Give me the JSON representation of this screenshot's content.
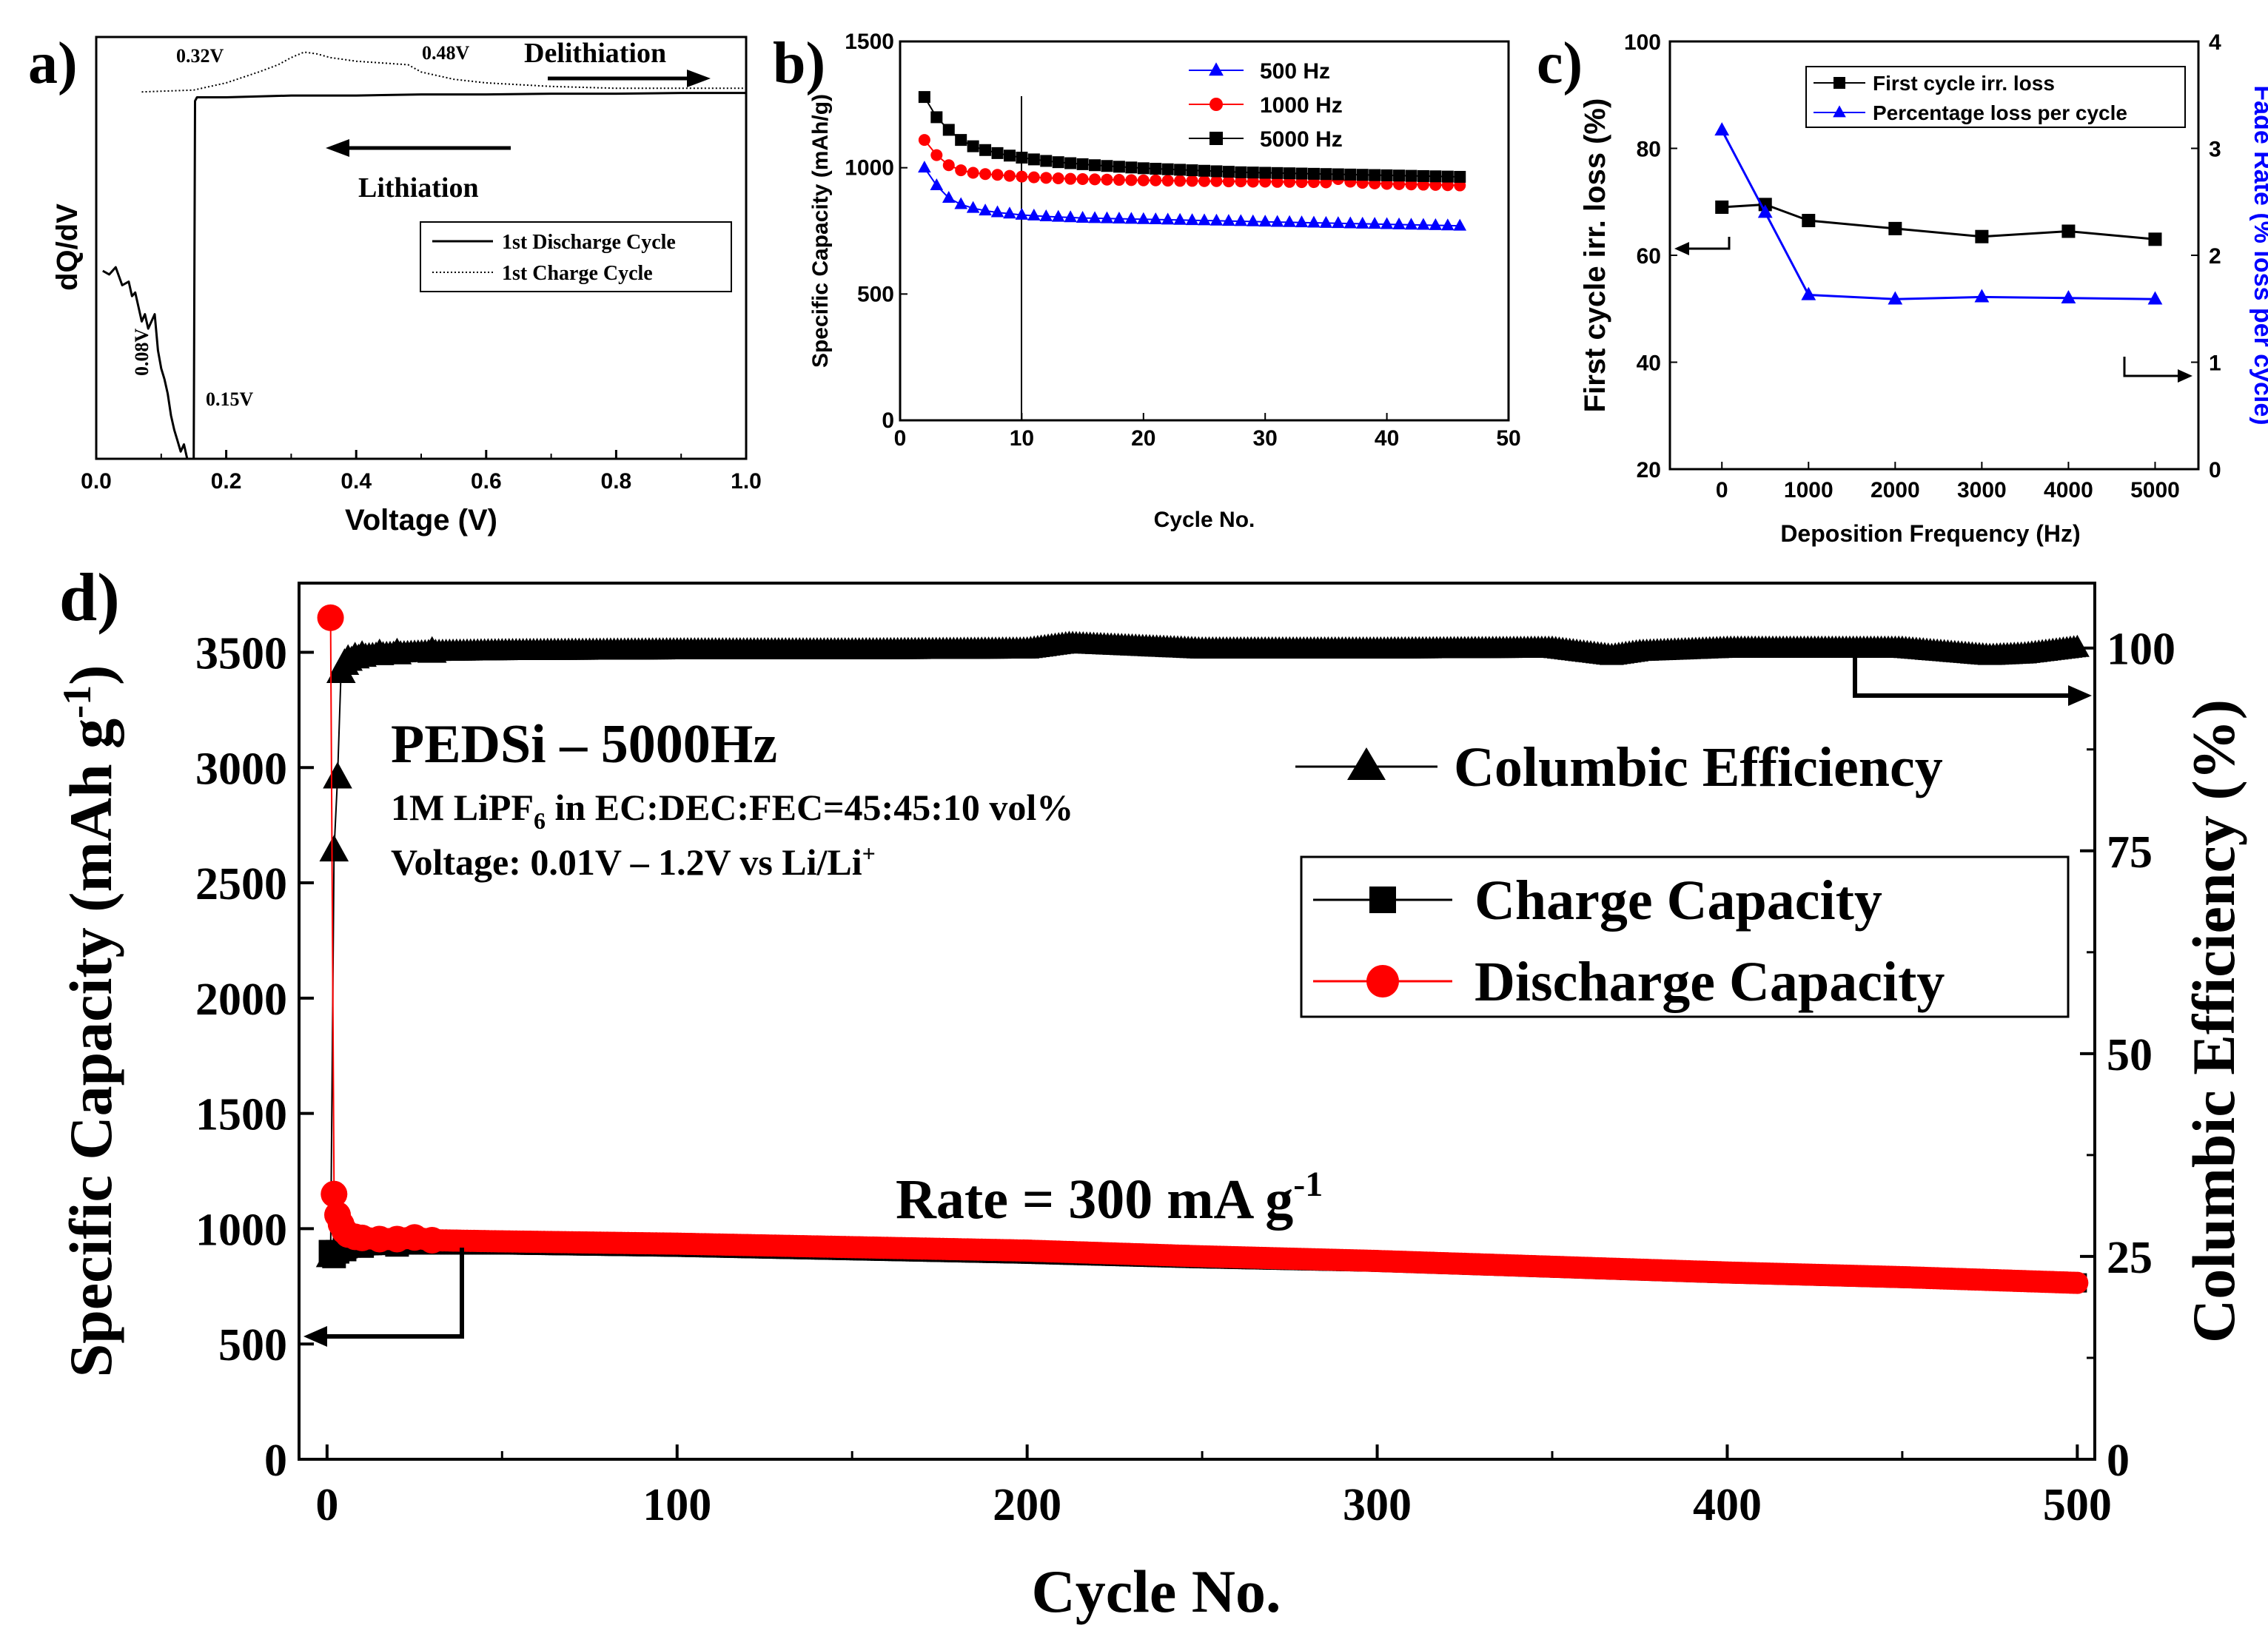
{
  "panel_labels": {
    "a": "a)",
    "b": "b)",
    "c": "c)",
    "d": "d)"
  },
  "chart_data": [
    {
      "panel": "a",
      "type": "line",
      "xlabel": "Voltage (V)",
      "ylabel": "dQ/dV",
      "xlim": [
        0.0,
        1.0
      ],
      "xticks": [
        "0.0",
        "0.2",
        "0.4",
        "0.6",
        "0.8",
        "1.0"
      ],
      "legend": [
        "1st Discharge Cycle",
        "1st Charge Cycle"
      ],
      "annotations": {
        "p032": "0.32V",
        "p048": "0.48V",
        "p008": "0.08V",
        "p015": "0.15V",
        "delithiation": "Delithiation",
        "lithiation": "Lithiation"
      },
      "series": [
        {
          "name": "1st Discharge Cycle",
          "style": "solid",
          "x": [
            0.01,
            0.02,
            0.03,
            0.04,
            0.05,
            0.055,
            0.06,
            0.065,
            0.07,
            0.075,
            0.08,
            0.085,
            0.09,
            0.095,
            0.1,
            0.105,
            0.11,
            0.115,
            0.12,
            0.125,
            0.13,
            0.135,
            0.14,
            0.15,
            0.152,
            0.155,
            0.2,
            0.3,
            0.4,
            0.5,
            0.6,
            0.7,
            0.8,
            0.9,
            1.0
          ],
          "y": [
            0.52,
            0.51,
            0.53,
            0.48,
            0.49,
            0.45,
            0.46,
            0.42,
            0.38,
            0.4,
            0.36,
            0.38,
            0.4,
            0.3,
            0.25,
            0.22,
            0.18,
            0.12,
            0.08,
            0.05,
            0.02,
            0.04,
            0.0,
            0.0,
            0.99,
            1.0,
            1.0,
            1.005,
            1.005,
            1.008,
            1.008,
            1.01,
            1.01,
            1.012,
            1.012
          ]
        },
        {
          "name": "1st Charge Cycle",
          "style": "dotted",
          "x": [
            0.07,
            0.15,
            0.2,
            0.25,
            0.28,
            0.3,
            0.32,
            0.34,
            0.36,
            0.4,
            0.44,
            0.48,
            0.5,
            0.55,
            0.6,
            0.7,
            0.8,
            0.9,
            1.0
          ],
          "y": [
            1.015,
            1.02,
            1.04,
            1.07,
            1.09,
            1.11,
            1.125,
            1.12,
            1.11,
            1.1,
            1.095,
            1.09,
            1.07,
            1.05,
            1.04,
            1.03,
            1.025,
            1.025,
            1.025
          ]
        }
      ]
    },
    {
      "panel": "b",
      "type": "line",
      "xlabel": "Cycle No.",
      "ylabel": "Specific Capacity (mAh/g)",
      "xlim": [
        0,
        50
      ],
      "ylim": [
        0,
        1500
      ],
      "xticks": [
        "0",
        "10",
        "20",
        "30",
        "40",
        "50"
      ],
      "yticks": [
        "0",
        "500",
        "1000",
        "1500"
      ],
      "vline_x": 10,
      "legend": [
        "500 Hz",
        "1000 Hz",
        "5000 Hz"
      ],
      "series": [
        {
          "name": "500 Hz",
          "color": "#0000ff",
          "marker": "triangle",
          "values": [
            1000,
            930,
            880,
            855,
            840,
            830,
            823,
            818,
            813,
            810,
            807,
            805,
            803,
            801,
            800,
            799,
            798,
            797,
            796,
            795,
            794,
            793,
            792,
            791,
            790,
            789,
            788,
            787,
            786,
            785,
            784,
            783,
            782,
            781,
            780,
            779,
            778,
            777,
            776,
            775,
            774,
            773,
            772,
            771,
            770
          ]
        },
        {
          "name": "1000 Hz",
          "color": "#ff0000",
          "marker": "circle",
          "values": [
            1110,
            1050,
            1010,
            990,
            980,
            975,
            972,
            968,
            965,
            962,
            960,
            958,
            956,
            955,
            954,
            953,
            952,
            951,
            950,
            950,
            949,
            948,
            948,
            947,
            947,
            946,
            946,
            945,
            945,
            944,
            944,
            943,
            943,
            942,
            955,
            945,
            940,
            938,
            936,
            935,
            934,
            933,
            932,
            931,
            930
          ]
        },
        {
          "name": "5000 Hz",
          "color": "#000000",
          "marker": "square",
          "values": [
            1280,
            1200,
            1150,
            1110,
            1085,
            1070,
            1058,
            1048,
            1040,
            1033,
            1027,
            1022,
            1018,
            1014,
            1010,
            1007,
            1004,
            1001,
            998,
            996,
            994,
            992,
            990,
            988,
            986,
            984,
            982,
            981,
            980,
            979,
            978,
            977,
            976,
            975,
            974,
            973,
            972,
            971,
            970,
            969,
            968,
            967,
            966,
            965,
            964
          ]
        }
      ]
    },
    {
      "panel": "c",
      "type": "line",
      "xlabel": "Deposition Frequency (Hz)",
      "ylabel": "First cycle irr. loss (%)",
      "y2label": "Fade Rate (% loss per cycle)",
      "xlim": [
        -600,
        5500
      ],
      "ylim": [
        20,
        100
      ],
      "y2lim": [
        0,
        4
      ],
      "xticks": [
        "0",
        "1000",
        "2000",
        "3000",
        "4000",
        "5000"
      ],
      "yticks": [
        "20",
        "40",
        "60",
        "80",
        "100"
      ],
      "y2ticks": [
        "0",
        "1",
        "2",
        "3",
        "4"
      ],
      "legend": [
        "First cycle irr. loss",
        "Percentage loss per cycle"
      ],
      "series": [
        {
          "name": "First cycle irr. loss",
          "axis": "left",
          "color": "#000000",
          "marker": "square",
          "x": [
            0,
            500,
            1000,
            2000,
            3000,
            4000,
            5000
          ],
          "y": [
            69,
            69.5,
            66.5,
            65,
            63.5,
            64.5,
            63
          ]
        },
        {
          "name": "Percentage loss per cycle",
          "axis": "right",
          "color": "#0000ff",
          "marker": "triangle",
          "x": [
            0,
            500,
            1000,
            2000,
            3000,
            4000,
            5000
          ],
          "y": [
            3.17,
            2.4,
            1.63,
            1.59,
            1.61,
            1.6,
            1.59
          ]
        }
      ]
    },
    {
      "panel": "d",
      "type": "scatter",
      "xlabel": "Cycle No.",
      "ylabel": "Specific Capacity (mAh g",
      "ylabel_sup": "-1",
      "ylabel_close": ")",
      "y2label": "Columbic Efficiency (%)",
      "xlim": [
        -8,
        505
      ],
      "ylim": [
        0,
        3800
      ],
      "y2lim": [
        0,
        108
      ],
      "xticks": [
        "0",
        "100",
        "200",
        "300",
        "400",
        "500"
      ],
      "yticks": [
        "0",
        "500",
        "1000",
        "1500",
        "2000",
        "2500",
        "3000",
        "3500"
      ],
      "y2ticks": [
        "0",
        "25",
        "50",
        "75",
        "100"
      ],
      "title_text": "PEDSi – 5000Hz",
      "electrolyte_pre": "1M LiPF",
      "electrolyte_sub": "6",
      "electrolyte_post": " in EC:DEC:FEC=45:45:10 vol%",
      "voltage_text": "Voltage: 0.01V – 1.2V vs Li/Li",
      "voltage_sup": "+",
      "rate_text": "Rate = 300 mA g",
      "rate_sup": "-1",
      "legend": [
        "Columbic Efficiency",
        "Charge Capacity",
        "Discharge Capacity"
      ],
      "series": [
        {
          "name": "Charge Capacity",
          "axis": "left",
          "color": "#000000",
          "marker": "square",
          "cycles": [
            1,
            2,
            3,
            5,
            10,
            20,
            50,
            100,
            150,
            200,
            250,
            300,
            350,
            400,
            450,
            500
          ],
          "values": [
            900,
            880,
            900,
            910,
            925,
            930,
            930,
            920,
            905,
            890,
            870,
            855,
            830,
            805,
            785,
            765
          ]
        },
        {
          "name": "Discharge Capacity",
          "axis": "left",
          "color": "#ff0000",
          "marker": "circle",
          "cycles": [
            1,
            2,
            3,
            4,
            5,
            6,
            8,
            10,
            15,
            20,
            25,
            30,
            50,
            100,
            150,
            200,
            250,
            300,
            350,
            400,
            450,
            500
          ],
          "values": [
            3650,
            1150,
            1060,
            1020,
            990,
            975,
            965,
            960,
            955,
            955,
            962,
            950,
            945,
            935,
            920,
            905,
            880,
            860,
            835,
            810,
            790,
            765
          ]
        },
        {
          "name": "Columbic Efficiency",
          "axis": "right",
          "color": "#000000",
          "marker": "triangle",
          "cycles": [
            1,
            2,
            3,
            4,
            5,
            6,
            8,
            10,
            15,
            20,
            30,
            50,
            100,
            150,
            200,
            212,
            250,
            300,
            350,
            367,
            375,
            400,
            450,
            475,
            485,
            500
          ],
          "values": [
            25,
            75,
            84,
            97,
            98,
            98.5,
            98.8,
            99,
            99.2,
            99.3,
            99.5,
            99.6,
            99.7,
            99.7,
            99.8,
            100.5,
            99.8,
            99.8,
            99.9,
            99,
            99.5,
            99.9,
            99.9,
            99,
            99.2,
            100
          ]
        }
      ]
    }
  ]
}
